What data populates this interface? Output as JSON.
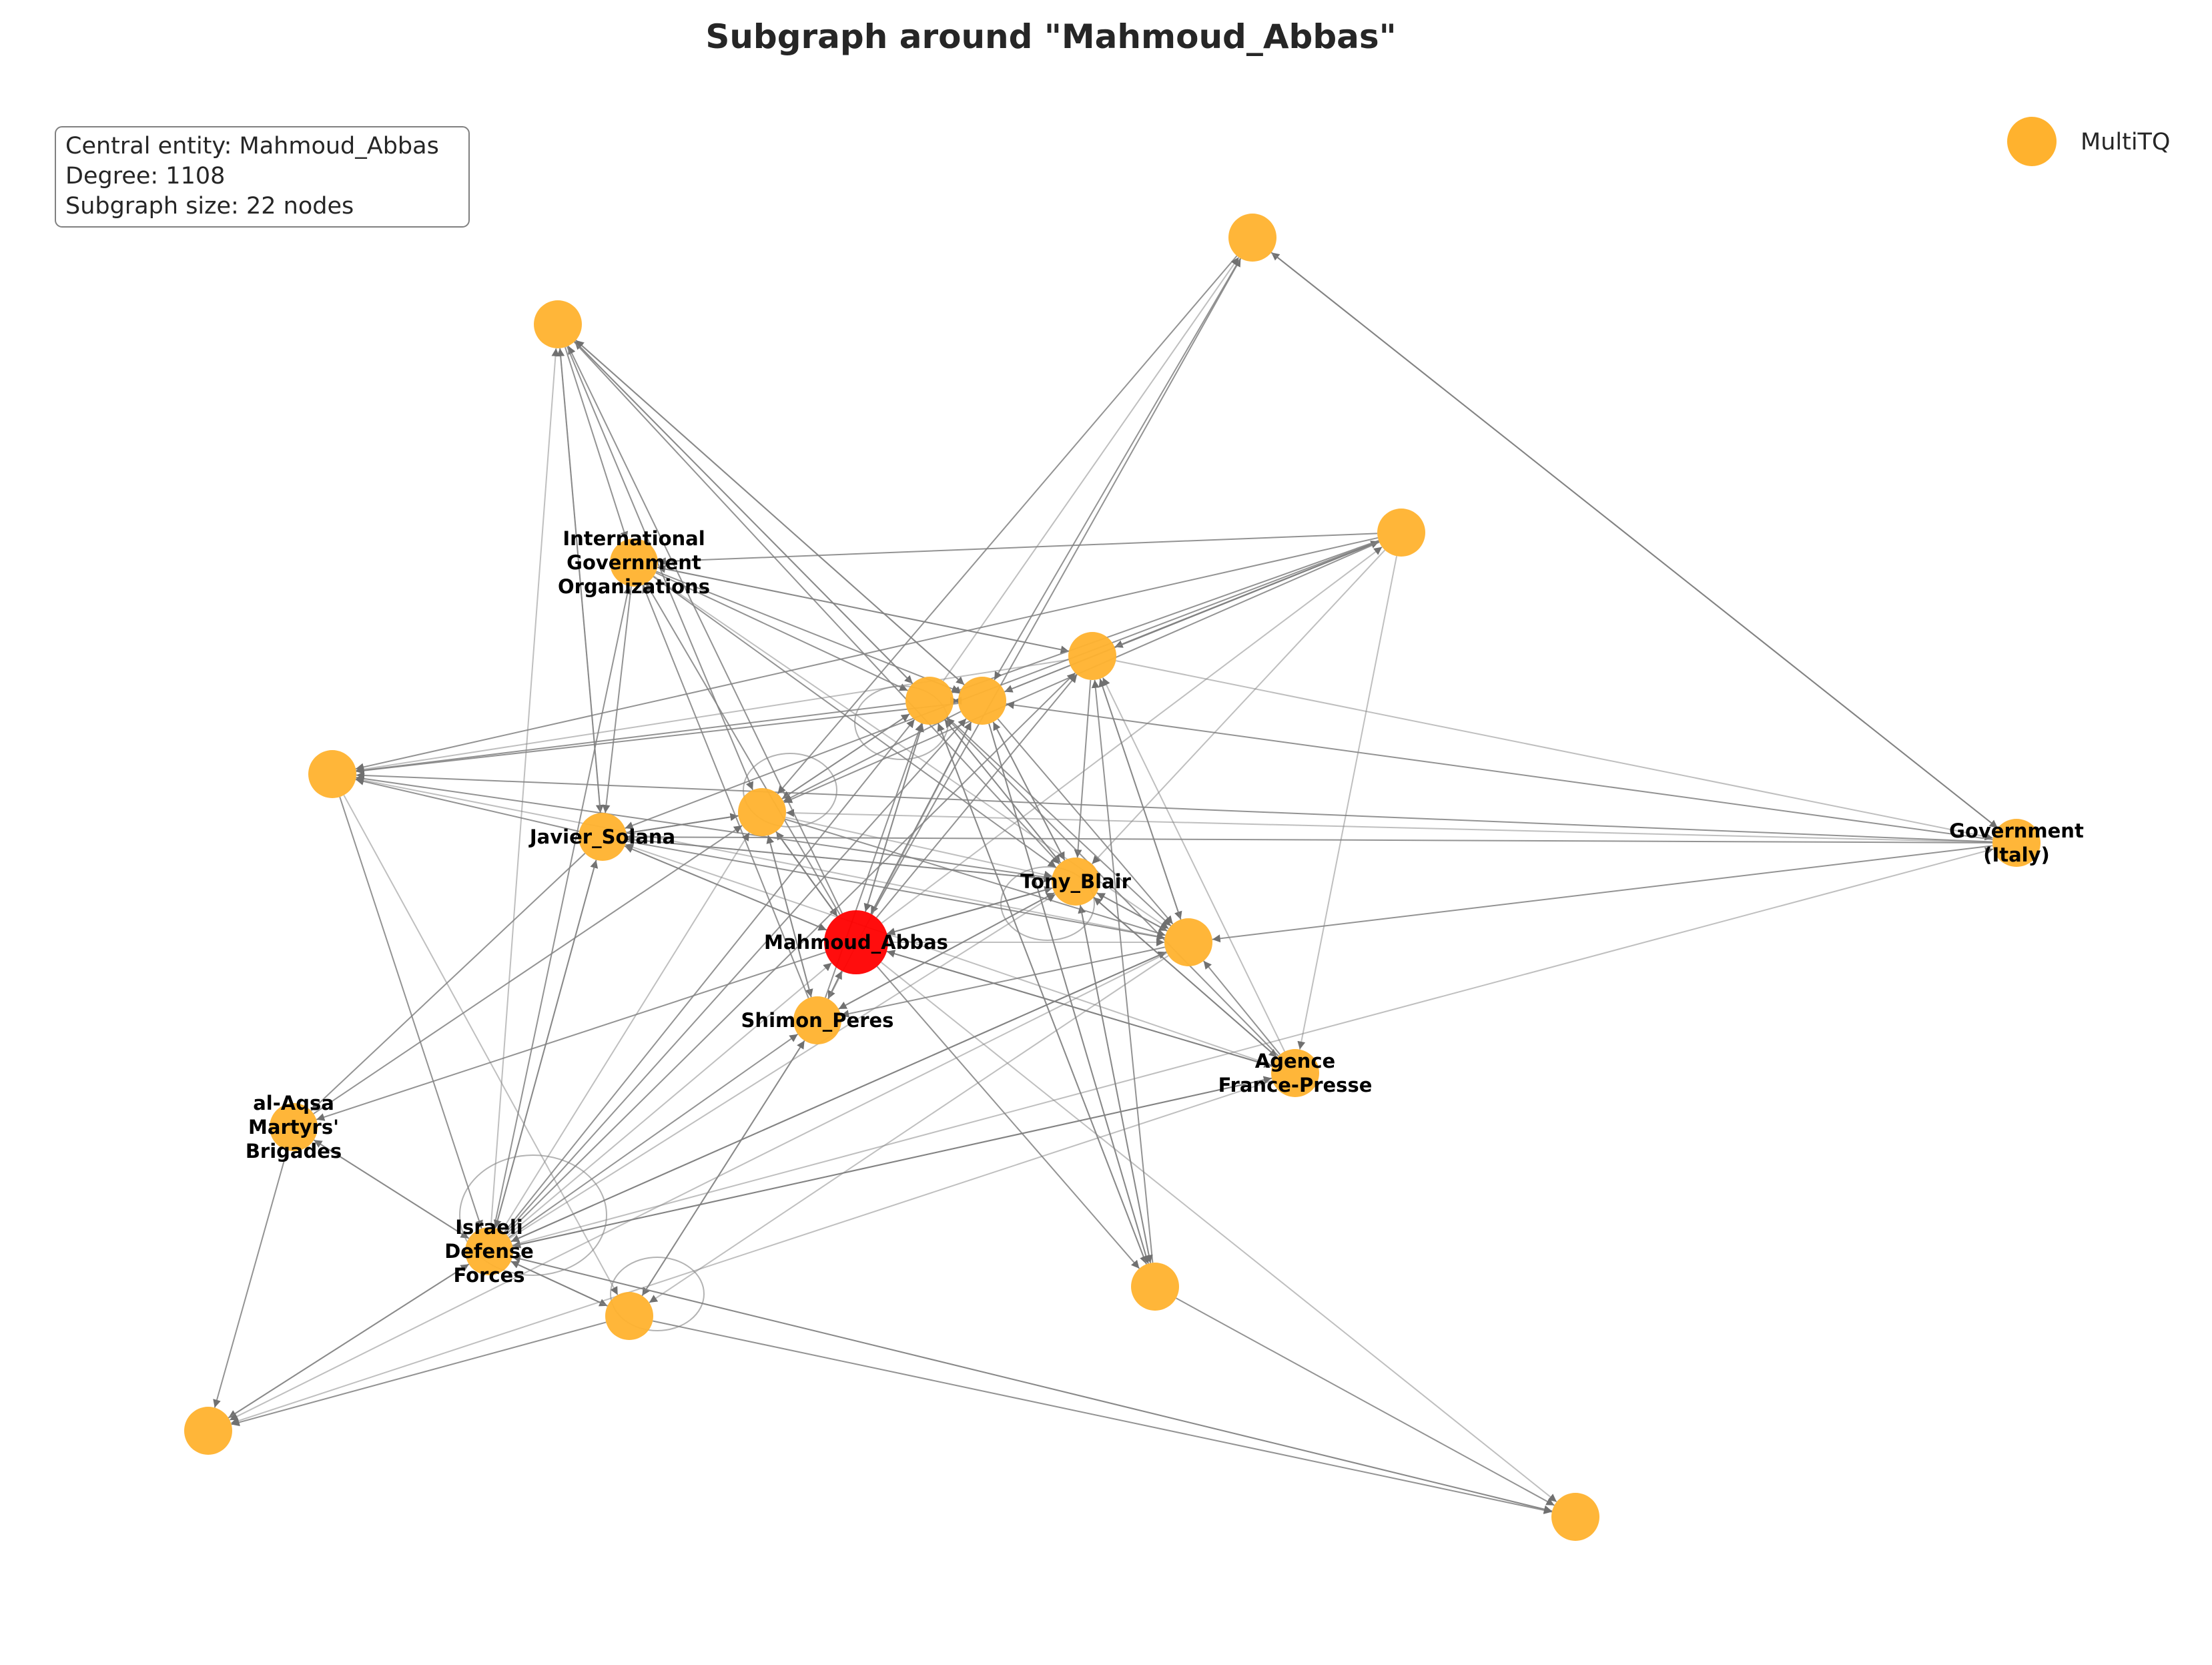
{
  "title": "Subgraph around \"Mahmoud_Abbas\"",
  "info_box": {
    "line1": "Central entity: Mahmoud_Abbas",
    "line2": "Degree: 1108",
    "line3": "Subgraph size: 22 nodes"
  },
  "legend": {
    "label": "MultiTQ",
    "color": "#ffb22e"
  },
  "colors": {
    "node": "#ffb22e",
    "central_node": "#ff0000",
    "edge": "#808080"
  },
  "graph": {
    "central": "Mahmoud_Abbas",
    "nodes": [
      {
        "id": "Mahmoud_Abbas",
        "label": "Mahmoud_Abbas",
        "central": true
      },
      {
        "id": "Tony_Blair",
        "label": "Tony_Blair"
      },
      {
        "id": "Shimon_Peres",
        "label": "Shimon_Peres"
      },
      {
        "id": "Javier_Solana",
        "label": "Javier_Solana"
      },
      {
        "id": "IGO",
        "label": "International\nGovernment\nOrganizations"
      },
      {
        "id": "Gov_Italy",
        "label": "Government\n(Italy)"
      },
      {
        "id": "AFP",
        "label": "Agence\nFrance-Presse"
      },
      {
        "id": "AlAqsa",
        "label": "al-Aqsa\nMartyrs'\nBrigades"
      },
      {
        "id": "IDF",
        "label": "Israeli\nDefense\nForces"
      },
      {
        "id": "n_top1",
        "label": ""
      },
      {
        "id": "n_top2",
        "label": ""
      },
      {
        "id": "n_right1",
        "label": ""
      },
      {
        "id": "n_mid1",
        "label": ""
      },
      {
        "id": "n_mid2",
        "label": ""
      },
      {
        "id": "n_mid3",
        "label": ""
      },
      {
        "id": "n_left1",
        "label": ""
      },
      {
        "id": "n_mid4",
        "label": ""
      },
      {
        "id": "n_right2",
        "label": ""
      },
      {
        "id": "n_bot1",
        "label": ""
      },
      {
        "id": "n_bot2",
        "label": ""
      },
      {
        "id": "n_bot3",
        "label": ""
      },
      {
        "id": "n_bot4",
        "label": ""
      }
    ],
    "edges": [
      [
        "Mahmoud_Abbas",
        "n_mid2"
      ],
      [
        "n_mid2",
        "Mahmoud_Abbas"
      ],
      [
        "Mahmoud_Abbas",
        "n_mid3"
      ],
      [
        "n_mid3",
        "Mahmoud_Abbas"
      ],
      [
        "Mahmoud_Abbas",
        "Tony_Blair"
      ],
      [
        "Tony_Blair",
        "Mahmoud_Abbas"
      ],
      [
        "Mahmoud_Abbas",
        "Shimon_Peres"
      ],
      [
        "Shimon_Peres",
        "Mahmoud_Abbas"
      ],
      [
        "Mahmoud_Abbas",
        "Javier_Solana"
      ],
      [
        "Javier_Solana",
        "Mahmoud_Abbas"
      ],
      [
        "Mahmoud_Abbas",
        "n_mid4"
      ],
      [
        "n_mid4",
        "Mahmoud_Abbas"
      ],
      [
        "Mahmoud_Abbas",
        "n_right2"
      ],
      [
        "Mahmoud_Abbas",
        "AFP"
      ],
      [
        "AFP",
        "Mahmoud_Abbas"
      ],
      [
        "Mahmoud_Abbas",
        "n_bot4"
      ],
      [
        "Mahmoud_Abbas",
        "n_bot2"
      ],
      [
        "Mahmoud_Abbas",
        "n_top1"
      ],
      [
        "Mahmoud_Abbas",
        "n_right1"
      ],
      [
        "Mahmoud_Abbas",
        "n_mid1"
      ],
      [
        "Mahmoud_Abbas",
        "AlAqsa"
      ],
      [
        "IDF",
        "Mahmoud_Abbas"
      ],
      [
        "Mahmoud_Abbas",
        "IGO"
      ],
      [
        "Mahmoud_Abbas",
        "n_top2"
      ],
      [
        "n_top2",
        "n_mid2"
      ],
      [
        "n_top2",
        "n_mid3"
      ],
      [
        "n_mid2",
        "n_top2"
      ],
      [
        "n_mid3",
        "n_top2"
      ],
      [
        "n_top2",
        "IGO"
      ],
      [
        "n_top2",
        "n_mid4"
      ],
      [
        "n_top2",
        "Javier_Solana"
      ],
      [
        "Javier_Solana",
        "n_top2"
      ],
      [
        "n_top2",
        "Tony_Blair"
      ],
      [
        "IDF",
        "n_top2"
      ],
      [
        "IGO",
        "n_mid2"
      ],
      [
        "IGO",
        "n_mid3"
      ],
      [
        "IGO",
        "n_mid1"
      ],
      [
        "n_mid1",
        "IGO"
      ],
      [
        "IGO",
        "Tony_Blair"
      ],
      [
        "IGO",
        "n_right2"
      ],
      [
        "IGO",
        "Javier_Solana"
      ],
      [
        "n_right1",
        "IGO"
      ],
      [
        "n_right1",
        "n_mid1"
      ],
      [
        "n_mid1",
        "n_right1"
      ],
      [
        "n_right1",
        "n_mid2"
      ],
      [
        "n_right1",
        "n_mid3"
      ],
      [
        "n_mid3",
        "n_right1"
      ],
      [
        "n_right1",
        "n_mid4"
      ],
      [
        "n_right1",
        "Tony_Blair"
      ],
      [
        "n_right1",
        "Javier_Solana"
      ],
      [
        "n_right1",
        "n_left1"
      ],
      [
        "n_right1",
        "AFP"
      ],
      [
        "n_mid2",
        "n_left1"
      ],
      [
        "n_mid3",
        "n_left1"
      ],
      [
        "n_mid1",
        "n_left1"
      ],
      [
        "Javier_Solana",
        "n_left1"
      ],
      [
        "Tony_Blair",
        "n_left1"
      ],
      [
        "n_right2",
        "n_left1"
      ],
      [
        "Gov_Italy",
        "n_left1"
      ],
      [
        "Gov_Italy",
        "n_mid3"
      ],
      [
        "n_mid1",
        "Gov_Italy"
      ],
      [
        "Gov_Italy",
        "Javier_Solana"
      ],
      [
        "Gov_Italy",
        "n_right2"
      ],
      [
        "Gov_Italy",
        "n_mid4"
      ],
      [
        "Gov_Italy",
        "n_top1"
      ],
      [
        "n_top1",
        "Gov_Italy"
      ],
      [
        "IDF",
        "Gov_Italy"
      ],
      [
        "n_top1",
        "n_mid3"
      ],
      [
        "n_top1",
        "n_mid4"
      ],
      [
        "n_mid2",
        "n_top1"
      ],
      [
        "n_mid2",
        "n_mid3"
      ],
      [
        "n_mid3",
        "n_mid2"
      ],
      [
        "n_mid2",
        "n_mid4"
      ],
      [
        "n_mid3",
        "n_mid4"
      ],
      [
        "n_mid4",
        "n_mid2"
      ],
      [
        "n_mid2",
        "Tony_Blair"
      ],
      [
        "Tony_Blair",
        "n_mid2"
      ],
      [
        "n_mid3",
        "Tony_Blair"
      ],
      [
        "Tony_Blair",
        "n_mid3"
      ],
      [
        "n_mid2",
        "n_right2"
      ],
      [
        "n_mid3",
        "n_right2"
      ],
      [
        "n_mid2",
        "n_bot2"
      ],
      [
        "n_mid3",
        "n_bot2"
      ],
      [
        "n_bot2",
        "n_mid1"
      ],
      [
        "n_mid1",
        "n_right2"
      ],
      [
        "n_right2",
        "n_mid1"
      ],
      [
        "n_mid1",
        "Tony_Blair"
      ],
      [
        "AFP",
        "n_mid1"
      ],
      [
        "AFP",
        "n_mid2"
      ],
      [
        "Tony_Blair",
        "n_right2"
      ],
      [
        "n_right2",
        "Tony_Blair"
      ],
      [
        "Tony_Blair",
        "AFP"
      ],
      [
        "AFP",
        "Tony_Blair"
      ],
      [
        "n_mid4",
        "Shimon_Peres"
      ],
      [
        "Shimon_Peres",
        "n_mid4"
      ],
      [
        "n_mid4",
        "n_right2"
      ],
      [
        "n_mid4",
        "Tony_Blair"
      ],
      [
        "n_mid4",
        "Javier_Solana"
      ],
      [
        "Javier_Solana",
        "n_mid4"
      ],
      [
        "Javier_Solana",
        "Tony_Blair"
      ],
      [
        "Tony_Blair",
        "Javier_Solana"
      ],
      [
        "Javier_Solana",
        "n_right2"
      ],
      [
        "Shimon_Peres",
        "Tony_Blair"
      ],
      [
        "Tony_Blair",
        "Shimon_Peres"
      ],
      [
        "Shimon_Peres",
        "n_mid2"
      ],
      [
        "Shimon_Peres",
        "n_mid3"
      ],
      [
        "Shimon_Peres",
        "IGO"
      ],
      [
        "Shimon_Peres",
        "n_bot1"
      ],
      [
        "n_bot1",
        "Shimon_Peres"
      ],
      [
        "n_right2",
        "Shimon_Peres"
      ],
      [
        "AFP",
        "n_right2"
      ],
      [
        "AFP",
        "Javier_Solana"
      ],
      [
        "AFP",
        "IDF"
      ],
      [
        "IDF",
        "AFP"
      ],
      [
        "AFP",
        "n_bot3"
      ],
      [
        "IDF",
        "n_bot1"
      ],
      [
        "n_bot1",
        "IDF"
      ],
      [
        "IDF",
        "n_bot3"
      ],
      [
        "n_bot3",
        "IDF"
      ],
      [
        "IDF",
        "AlAqsa"
      ],
      [
        "AlAqsa",
        "IDF"
      ],
      [
        "IDF",
        "n_mid2"
      ],
      [
        "IDF",
        "n_mid3"
      ],
      [
        "IDF",
        "n_mid4"
      ],
      [
        "IDF",
        "Shimon_Peres"
      ],
      [
        "IDF",
        "n_right2"
      ],
      [
        "IDF",
        "Tony_Blair"
      ],
      [
        "IDF",
        "n_mid1"
      ],
      [
        "IDF",
        "n_bot4"
      ],
      [
        "n_bot4",
        "IDF"
      ],
      [
        "IDF",
        "Javier_Solana"
      ],
      [
        "IDF",
        "IGO"
      ],
      [
        "n_right2",
        "n_bot3"
      ],
      [
        "n_right2",
        "IDF"
      ],
      [
        "n_left1",
        "IDF"
      ],
      [
        "n_left1",
        "n_bot1"
      ],
      [
        "AlAqsa",
        "n_bot3"
      ],
      [
        "n_bot1",
        "n_bot3"
      ],
      [
        "n_right2",
        "n_bot1"
      ],
      [
        "n_bot1",
        "n_bot4"
      ],
      [
        "n_bot2",
        "n_bot4"
      ],
      [
        "n_bot2",
        "Tony_Blair"
      ],
      [
        "n_bot2",
        "n_mid2"
      ],
      [
        "Tony_Blair",
        "n_bot2"
      ],
      [
        "n_mid3",
        "n_bot2"
      ],
      [
        "AlAqsa",
        "n_mid4"
      ],
      [
        "Javier_Solana",
        "AlAqsa"
      ],
      [
        "Javier_Solana",
        "IDF"
      ]
    ],
    "self_loops": [
      "IDF",
      "n_mid2",
      "n_mid4",
      "Tony_Blair",
      "n_bot1"
    ]
  }
}
